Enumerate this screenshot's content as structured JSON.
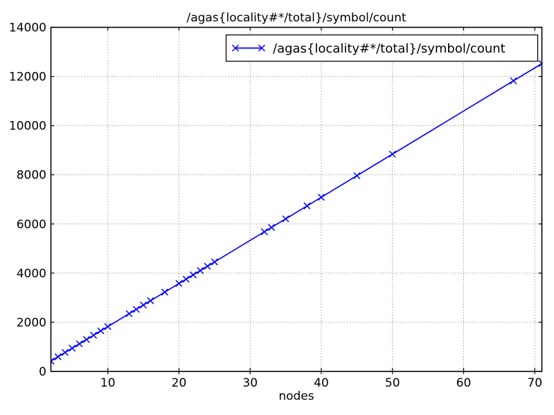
{
  "chart_data": {
    "type": "line",
    "title": "/agas{locality#*/total}/symbol/count",
    "xlabel": "nodes",
    "ylabel": "",
    "xlim": [
      2,
      71
    ],
    "ylim": [
      0,
      14000
    ],
    "xticks": [
      10,
      20,
      30,
      40,
      50,
      60,
      70
    ],
    "yticks": [
      0,
      2000,
      4000,
      6000,
      8000,
      10000,
      12000,
      14000
    ],
    "grid": true,
    "grid_style": "dotted",
    "x": [
      2,
      3,
      4,
      5,
      6,
      7,
      8,
      9,
      10,
      13,
      14,
      15,
      16,
      18,
      20,
      21,
      22,
      23,
      24,
      25,
      32,
      33,
      35,
      38,
      40,
      45,
      50,
      67,
      71
    ],
    "series": [
      {
        "name": "/agas{locality#*/total}/symbol/count",
        "marker": "x",
        "color": "#0000ff",
        "values": [
          421,
          596,
          772,
          947,
          1122,
          1298,
          1473,
          1649,
          1824,
          2350,
          2526,
          2701,
          2876,
          3227,
          3578,
          3753,
          3929,
          4104,
          4280,
          4455,
          5683,
          5858,
          6209,
          6735,
          7086,
          7963,
          8840,
          11822,
          12523
        ]
      }
    ],
    "legend": {
      "position": "upper right",
      "entries": [
        {
          "label": "/agas{locality#*/total}/symbol/count",
          "color": "#0000ff",
          "marker": "x"
        }
      ]
    },
    "colors": {
      "line": "#0000ff",
      "frame": "#000000",
      "grid": "#666666",
      "background": "#ffffff",
      "text": "#000000"
    }
  }
}
